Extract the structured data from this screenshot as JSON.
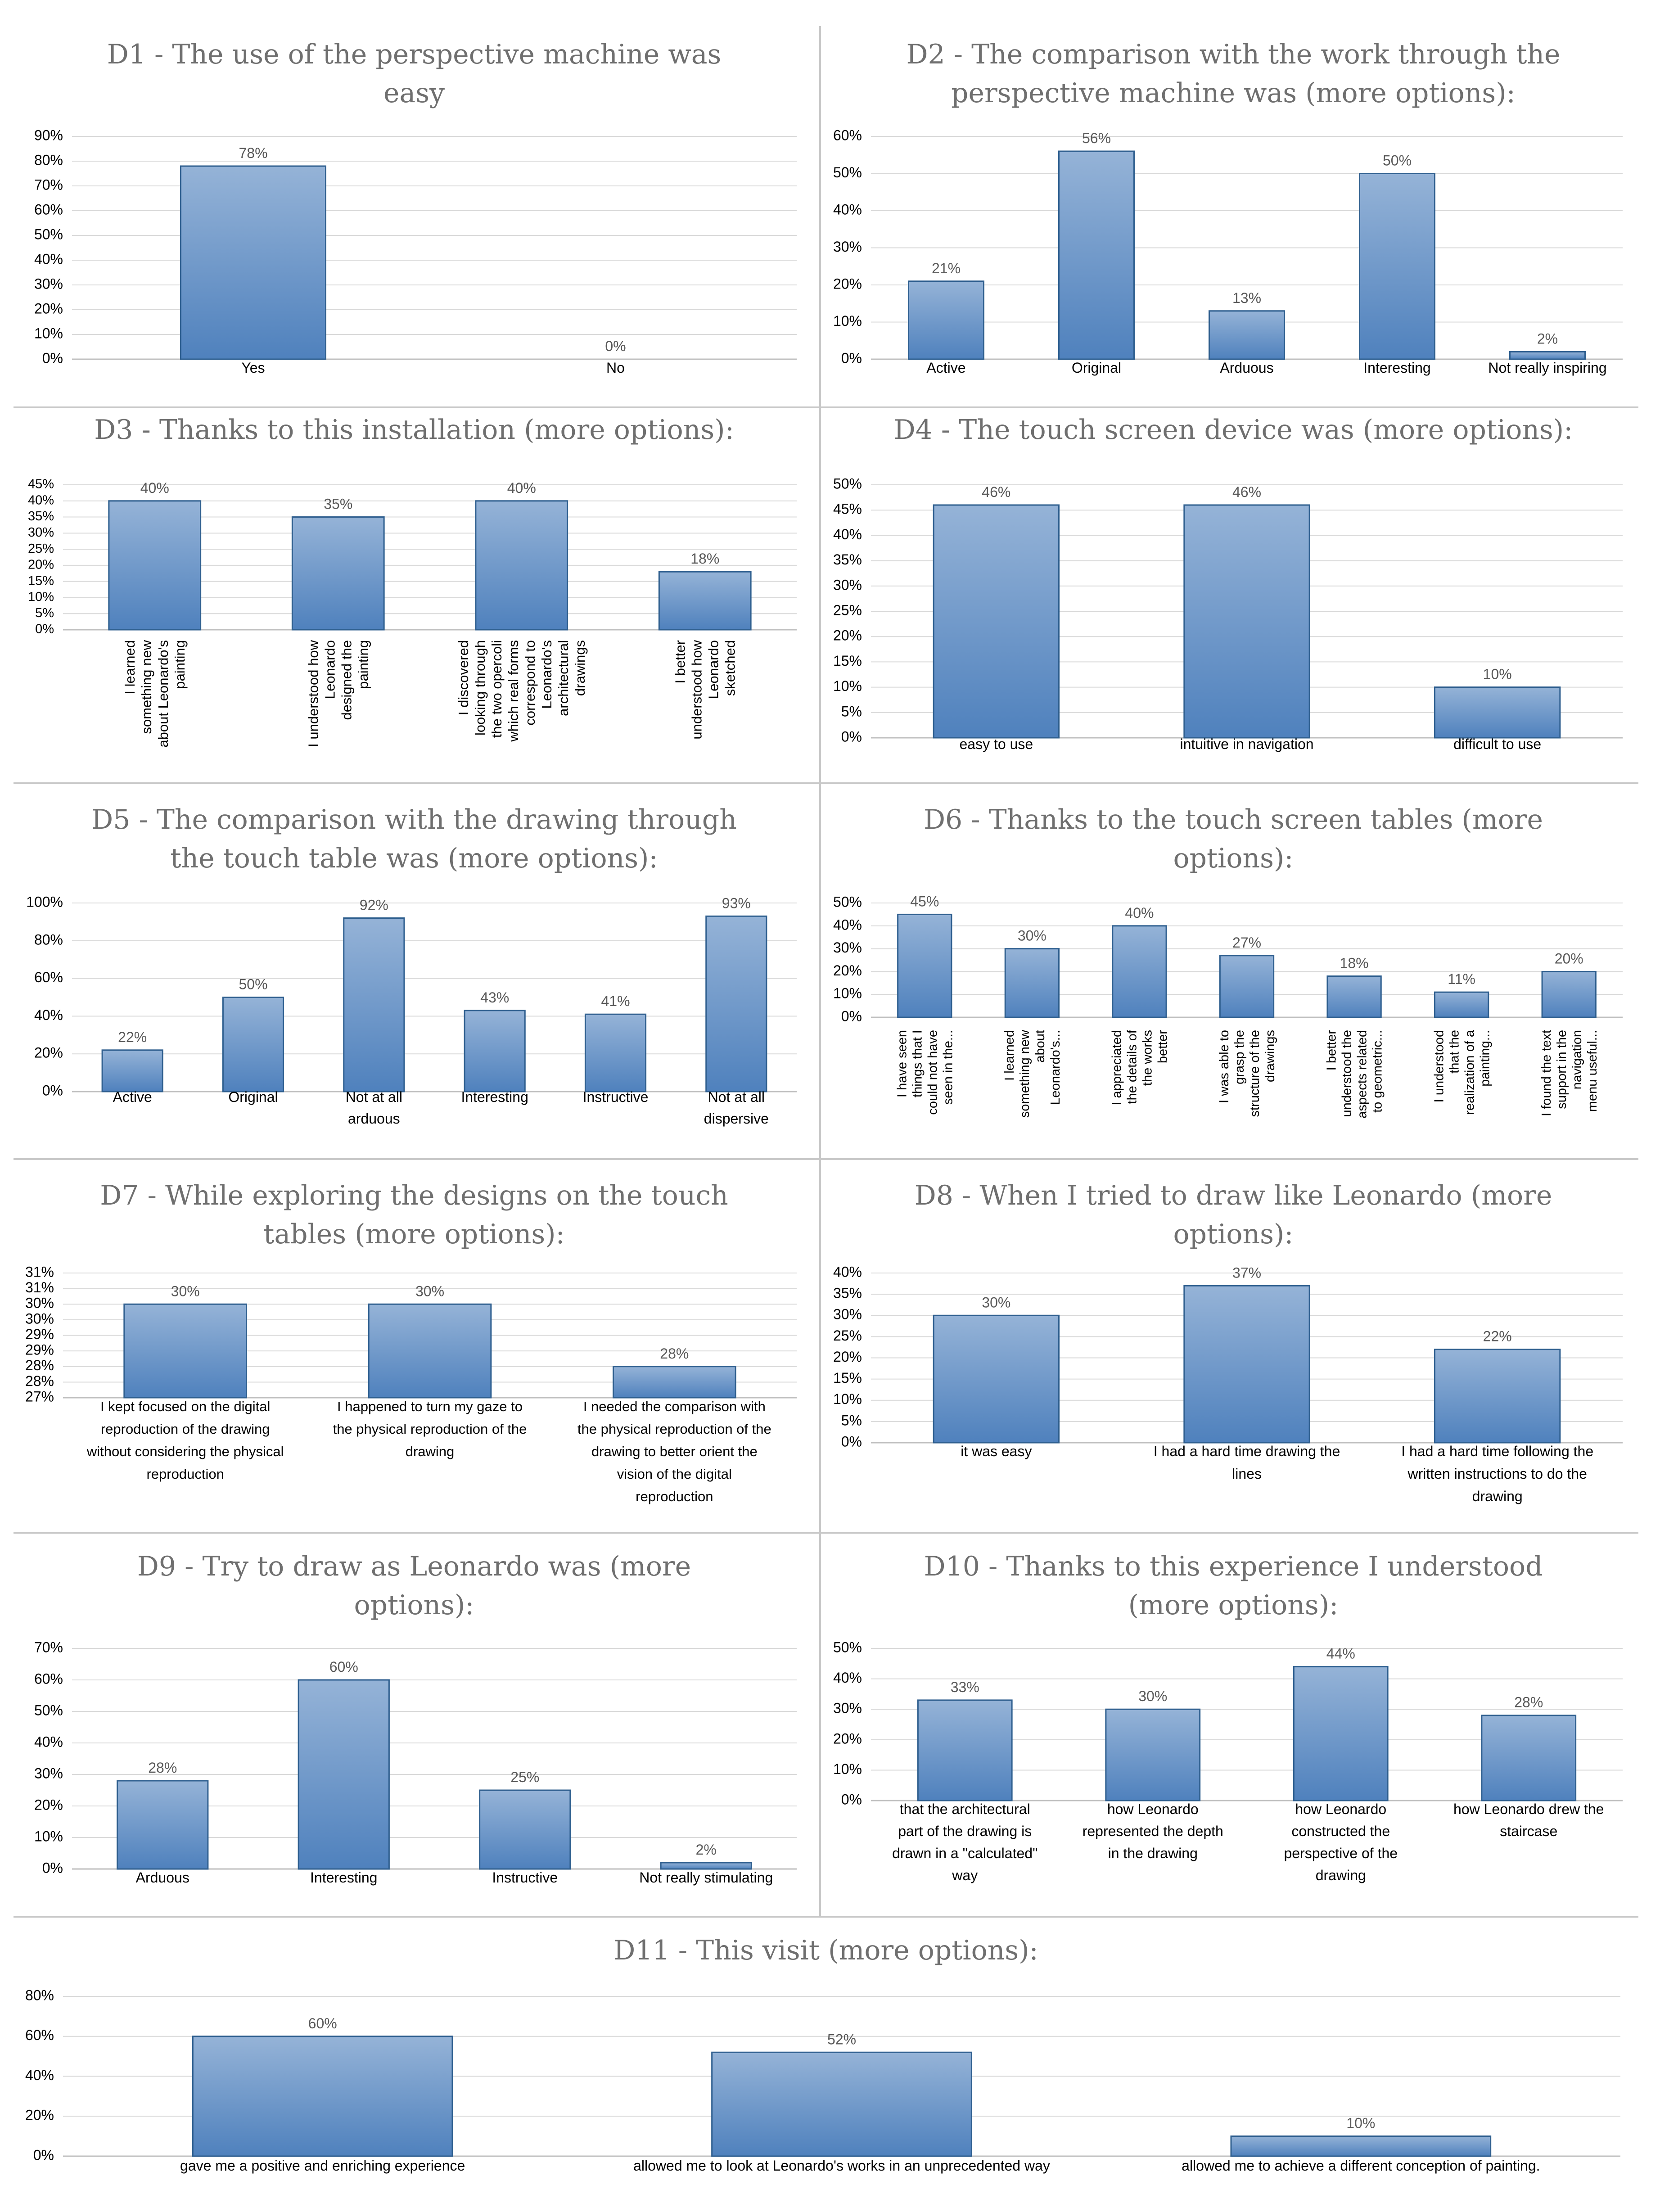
{
  "style": {
    "bar_fill_top": "#95b3d7",
    "bar_fill_bottom": "#4f81bd",
    "bar_stroke": "#2f5f8f",
    "grid": "#d9d9d9",
    "axis": "#bfbfbf",
    "text": "#000000",
    "value_text": "#595959",
    "title_text": "#6f6f6f"
  },
  "chart_data": [
    {
      "id": "d1",
      "type": "bar",
      "title": "D1 - The use of the perspective machine was easy",
      "categories": [
        "Yes",
        "No"
      ],
      "values": [
        78,
        0
      ],
      "value_labels": [
        "78%",
        "0%"
      ],
      "ylim": [
        0,
        90
      ],
      "ytick_step": 10,
      "ytick_labels": [
        "0%",
        "10%",
        "20%",
        "30%",
        "40%",
        "50%",
        "60%",
        "70%",
        "80%",
        "90%"
      ],
      "grid": true,
      "legend": "none"
    },
    {
      "id": "d2",
      "type": "bar",
      "title": "D2 - The comparison with the work through the perspective machine was (more options):",
      "categories": [
        "Active",
        "Original",
        "Arduous",
        "Interesting",
        "Not really inspiring"
      ],
      "values": [
        21,
        56,
        13,
        50,
        2
      ],
      "value_labels": [
        "21%",
        "56%",
        "13%",
        "50%",
        "2%"
      ],
      "ylim": [
        0,
        60
      ],
      "ytick_step": 10,
      "ytick_labels": [
        "0%",
        "10%",
        "20%",
        "30%",
        "40%",
        "50%",
        "60%"
      ],
      "grid": true,
      "legend": "none"
    },
    {
      "id": "d3",
      "type": "bar",
      "title": "D3 - Thanks to this installation (more options):",
      "categories": [
        "I learned something new about Leonardo's painting",
        "I understood how Leonardo designed the painting",
        "I discovered looking through the two opercoli which real forms correspond to Leonardo's architectural drawings",
        "I better understood how Leonardo sketched"
      ],
      "values": [
        40,
        35,
        40,
        18
      ],
      "value_labels": [
        "40%",
        "35%",
        "40%",
        "18%"
      ],
      "ylim": [
        0,
        45
      ],
      "ytick_step": 5,
      "ytick_labels": [
        "0%",
        "5%",
        "10%",
        "15%",
        "20%",
        "25%",
        "30%",
        "35%",
        "40%",
        "45%"
      ],
      "grid": true,
      "legend": "none"
    },
    {
      "id": "d4",
      "type": "bar",
      "title": "D4 - The touch screen device was (more options):",
      "categories": [
        "easy to use",
        "intuitive in navigation",
        "difficult to use"
      ],
      "values": [
        46,
        46,
        10
      ],
      "value_labels": [
        "46%",
        "46%",
        "10%"
      ],
      "ylim": [
        0,
        50
      ],
      "ytick_step": 5,
      "ytick_labels": [
        "0%",
        "5%",
        "10%",
        "15%",
        "20%",
        "25%",
        "30%",
        "35%",
        "40%",
        "45%",
        "50%"
      ],
      "grid": true,
      "legend": "none"
    },
    {
      "id": "d5",
      "type": "bar",
      "title": "D5 - The comparison with the drawing through the touch table was (more options):",
      "categories": [
        "Active",
        "Original",
        "Not at all arduous",
        "Interesting",
        "Instructive",
        "Not at all dispersive"
      ],
      "values": [
        22,
        50,
        92,
        43,
        41,
        93
      ],
      "value_labels": [
        "22%",
        "50%",
        "92%",
        "43%",
        "41%",
        "93%"
      ],
      "ylim": [
        0,
        100
      ],
      "ytick_step": 20,
      "ytick_labels": [
        "0%",
        "20%",
        "40%",
        "60%",
        "80%",
        "100%"
      ],
      "grid": true,
      "legend": "none"
    },
    {
      "id": "d6",
      "type": "bar",
      "title": "D6 - Thanks to the touch screen tables (more options):",
      "categories": [
        "I have seen things that I could not have seen in the...",
        "I learned something new about Leonardo's...",
        "I appreciated the details of the works better",
        "I was able to grasp the structure of the drawings",
        "I better understood the aspects related to geometric...",
        "I understood that the realization of a painting...",
        "I found the text support in the navigation menu useful..."
      ],
      "values": [
        45,
        30,
        40,
        27,
        18,
        11,
        20
      ],
      "value_labels": [
        "45%",
        "30%",
        "40%",
        "27%",
        "18%",
        "11%",
        "20%"
      ],
      "ylim": [
        0,
        50
      ],
      "ytick_step": 10,
      "ytick_labels": [
        "0%",
        "10%",
        "20%",
        "30%",
        "40%",
        "50%"
      ],
      "grid": true,
      "legend": "none"
    },
    {
      "id": "d7",
      "type": "bar",
      "title": "D7 - While exploring the designs on the touch tables (more options):",
      "categories": [
        "I kept focused on the digital reproduction of the drawing without considering the physical reproduction",
        "I happened to turn my gaze to the physical reproduction of the drawing",
        "I needed the comparison with the physical reproduction of the drawing to better orient the vision of the digital reproduction"
      ],
      "values": [
        30,
        30,
        28
      ],
      "value_labels": [
        "30%",
        "30%",
        "28%"
      ],
      "ylim": [
        27,
        31
      ],
      "ytick_step": 0.5,
      "ytick_labels": [
        "27%",
        "28%",
        "28%",
        "29%",
        "29%",
        "30%",
        "30%",
        "31%",
        "31%"
      ],
      "grid": true,
      "legend": "none"
    },
    {
      "id": "d8",
      "type": "bar",
      "title": "D8 - When I tried to draw like Leonardo (more options):",
      "categories": [
        "it was easy",
        "I had a hard time drawing the lines",
        "I had a hard time following the written instructions to do the drawing"
      ],
      "values": [
        30,
        37,
        22
      ],
      "value_labels": [
        "30%",
        "37%",
        "22%"
      ],
      "ylim": [
        0,
        40
      ],
      "ytick_step": 5,
      "ytick_labels": [
        "0%",
        "5%",
        "10%",
        "15%",
        "20%",
        "25%",
        "30%",
        "35%",
        "40%"
      ],
      "grid": true,
      "legend": "none"
    },
    {
      "id": "d9",
      "type": "bar",
      "title": "D9 - Try to draw as Leonardo was (more options):",
      "categories": [
        "Arduous",
        "Interesting",
        "Instructive",
        "Not really stimulating"
      ],
      "values": [
        28,
        60,
        25,
        2
      ],
      "value_labels": [
        "28%",
        "60%",
        "25%",
        "2%"
      ],
      "ylim": [
        0,
        70
      ],
      "ytick_step": 10,
      "ytick_labels": [
        "0%",
        "10%",
        "20%",
        "30%",
        "40%",
        "50%",
        "60%",
        "70%"
      ],
      "grid": true,
      "legend": "none"
    },
    {
      "id": "d10",
      "type": "bar",
      "title": "D10 - Thanks to this experience I understood (more options):",
      "categories": [
        "that the architectural part of the drawing is drawn in a \"calculated\" way",
        "how Leonardo represented the depth in the drawing",
        "how Leonardo constructed the perspective of the drawing",
        "how Leonardo drew the staircase"
      ],
      "values": [
        33,
        30,
        44,
        28
      ],
      "value_labels": [
        "33%",
        "30%",
        "44%",
        "28%"
      ],
      "ylim": [
        0,
        50
      ],
      "ytick_step": 10,
      "ytick_labels": [
        "0%",
        "10%",
        "20%",
        "30%",
        "40%",
        "50%"
      ],
      "grid": true,
      "legend": "none"
    },
    {
      "id": "d11",
      "type": "bar",
      "title": "D11 - This visit (more options):",
      "categories": [
        "gave me a positive and enriching experience",
        "allowed me to look at Leonardo's works in an unprecedented way",
        "allowed me to achieve a different conception of painting."
      ],
      "values": [
        60,
        52,
        10
      ],
      "value_labels": [
        "60%",
        "52%",
        "10%"
      ],
      "ylim": [
        0,
        80
      ],
      "ytick_step": 20,
      "ytick_labels": [
        "0%",
        "20%",
        "40%",
        "60%",
        "80%"
      ],
      "grid": true,
      "legend": "none"
    }
  ],
  "category_label_lines": {
    "d3": [
      [
        "I learned",
        "something new",
        "about Leonardo's",
        "painting"
      ],
      [
        "I understood how",
        "Leonardo",
        "designed the",
        "painting"
      ],
      [
        "I discovered",
        "looking through",
        "the two opercoli",
        "which real forms",
        "correspond to",
        "Leonardo's",
        "architectural",
        "drawings"
      ],
      [
        "I better",
        "understood how",
        "Leonardo",
        "sketched"
      ]
    ],
    "d5": [
      [
        "Active"
      ],
      [
        "Original"
      ],
      [
        "Not at all",
        "arduous"
      ],
      [
        "Interesting"
      ],
      [
        "Instructive"
      ],
      [
        "Not at all",
        "dispersive"
      ]
    ],
    "d6": [
      [
        "I have seen",
        "things that I",
        "could not have",
        "seen in the..."
      ],
      [
        "I learned",
        "something new",
        "about",
        "Leonardo's..."
      ],
      [
        "I appreciated",
        "the details of",
        "the works",
        "better"
      ],
      [
        "I was able to",
        "grasp the",
        "structure of the",
        "drawings"
      ],
      [
        "I better",
        "understood the",
        "aspects related",
        "to geometric..."
      ],
      [
        "I understood",
        "that the",
        "realization of a",
        "painting..."
      ],
      [
        "I found the text",
        "support in the",
        "navigation",
        "menu useful..."
      ]
    ],
    "d7": [
      [
        "I kept focused on the digital",
        "reproduction of the drawing",
        "without considering the physical",
        "reproduction"
      ],
      [
        "I happened to turn my gaze to",
        "the physical reproduction of the",
        "drawing"
      ],
      [
        "I needed the comparison with",
        "the physical reproduction of the",
        "drawing to better orient the",
        "vision of the digital",
        "reproduction"
      ]
    ],
    "d8": [
      [
        "it was easy"
      ],
      [
        "I had a hard time drawing the",
        "lines"
      ],
      [
        "I had a hard time following the",
        "written instructions to do the",
        "drawing"
      ]
    ],
    "d10": [
      [
        "that the architectural",
        "part of the drawing is",
        "drawn in a \"calculated\"",
        "way"
      ],
      [
        "how Leonardo",
        "represented the depth",
        "in the drawing"
      ],
      [
        "how Leonardo",
        "constructed the",
        "perspective of the",
        "drawing"
      ],
      [
        "how Leonardo drew the",
        "staircase"
      ]
    ]
  },
  "title_lines": {
    "d1": [
      "D1 - The use of the perspective machine was",
      "easy"
    ],
    "d2": [
      "D2 - The comparison with the work through the",
      "perspective machine was (more options):"
    ],
    "d3": [
      "D3 - Thanks to this installation (more options):"
    ],
    "d4": [
      "D4 - The touch screen device was (more options):"
    ],
    "d5": [
      "D5 - The comparison with the drawing through",
      "the touch table was (more options):"
    ],
    "d6": [
      "D6 - Thanks to the touch screen tables (more",
      "options):"
    ],
    "d7": [
      "D7 - While exploring the designs on the touch",
      "tables (more options):"
    ],
    "d8": [
      "D8 - When I tried to draw like Leonardo (more",
      "options):"
    ],
    "d9": [
      "D9 - Try to draw as Leonardo was (more",
      "options):"
    ],
    "d10": [
      "D10 - Thanks to this experience I understood",
      "(more options):"
    ],
    "d11": [
      "D11 - This visit (more options):"
    ]
  }
}
